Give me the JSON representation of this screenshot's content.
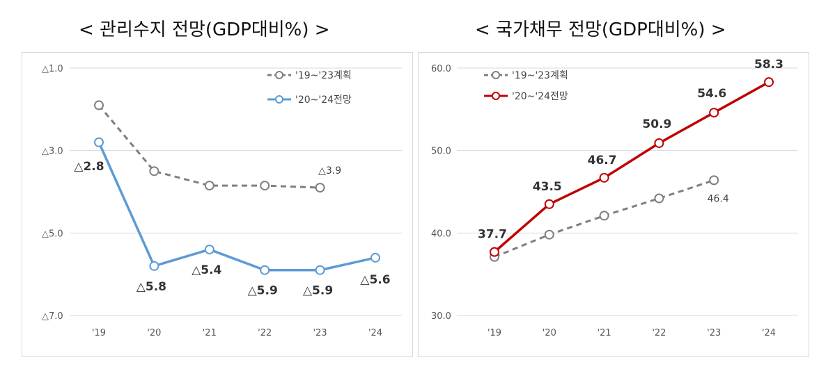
{
  "charts": [
    {
      "title": "< 관리수지  전망(GDP대비%) >",
      "chart_data": {
        "type": "line",
        "categories": [
          "'19",
          "'20",
          "'21",
          "'22",
          "'23",
          "'24"
        ],
        "ylim": [
          -7.0,
          -1.0
        ],
        "yticks": [
          -1.0,
          -3.0,
          -5.0,
          -7.0
        ],
        "ytick_labels": [
          "△1.0",
          "△3.0",
          "△5.0",
          "△7.0"
        ],
        "grid": true,
        "legend_position": "top-right",
        "series": [
          {
            "name": "'19~'23계획",
            "style": "dashed",
            "color": "#7f7f7f",
            "values": [
              -1.9,
              -3.5,
              -3.85,
              -3.85,
              -3.9,
              null
            ],
            "labels": [
              null,
              null,
              null,
              null,
              "△3.9",
              null
            ]
          },
          {
            "name": "'20~'24전망",
            "style": "solid",
            "color": "#5b9bd5",
            "values": [
              -2.8,
              -5.8,
              -5.4,
              -5.9,
              -5.9,
              -5.6
            ],
            "labels": [
              "△2.8",
              "△5.8",
              "△5.4",
              "△5.9",
              "△5.9",
              "△5.6"
            ]
          }
        ]
      }
    },
    {
      "title": "< 국가채무  전망(GDP대비%) >",
      "chart_data": {
        "type": "line",
        "categories": [
          "'19",
          "'20",
          "'21",
          "'22",
          "'23",
          "'24"
        ],
        "ylim": [
          30.0,
          60.0
        ],
        "yticks": [
          60.0,
          50.0,
          40.0,
          30.0
        ],
        "ytick_labels": [
          "60.0",
          "50.0",
          "40.0",
          "30.0"
        ],
        "grid": true,
        "legend_position": "top-left",
        "series": [
          {
            "name": "'19~'23계획",
            "style": "dashed",
            "color": "#7f7f7f",
            "values": [
              37.1,
              39.8,
              42.1,
              44.2,
              46.4,
              null
            ],
            "labels": [
              null,
              null,
              null,
              null,
              "46.4",
              null
            ]
          },
          {
            "name": "'20~'24전망",
            "style": "solid",
            "color": "#c00000",
            "values": [
              37.7,
              43.5,
              46.7,
              50.9,
              54.6,
              58.3
            ],
            "labels": [
              "37.7",
              "43.5",
              "46.7",
              "50.9",
              "54.6",
              "58.3"
            ]
          }
        ]
      }
    }
  ]
}
